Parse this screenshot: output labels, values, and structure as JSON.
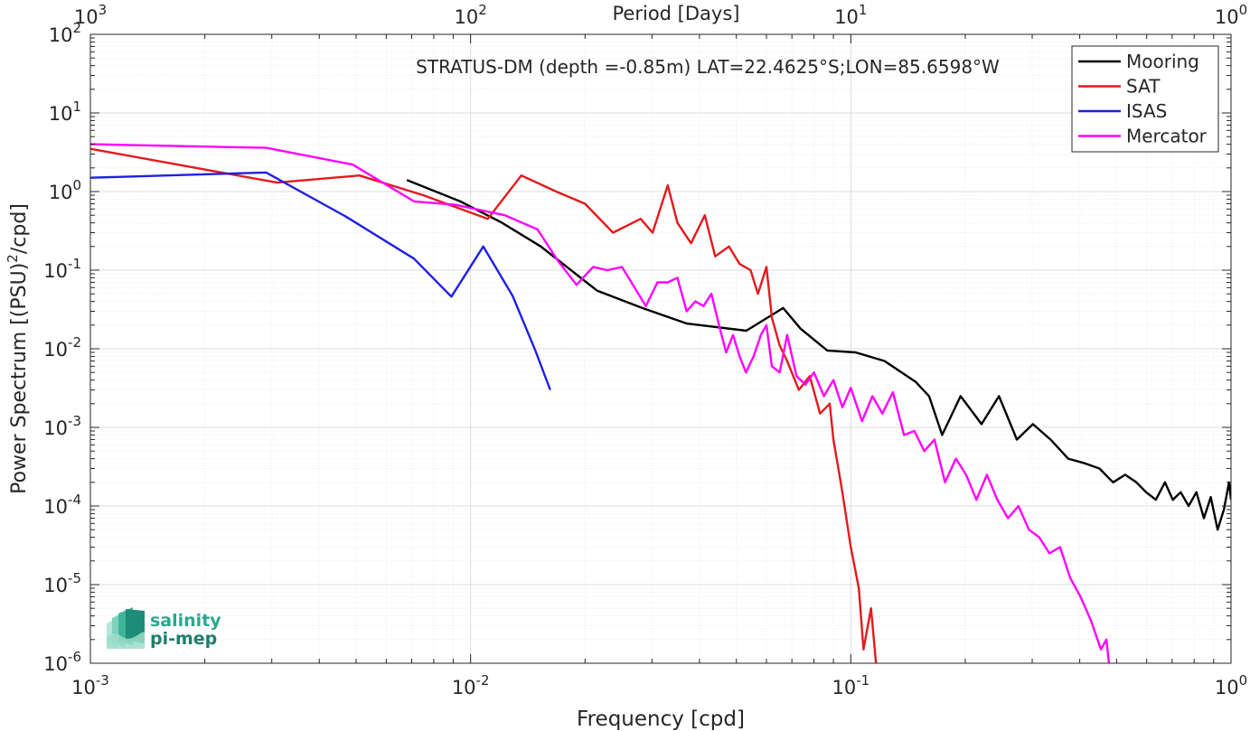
{
  "chart_data": {
    "type": "line",
    "title": "STRATUS-DM (depth =-0.85m) LAT=22.4625°S;LON=85.6598°W",
    "xlabel": "Frequency [cpd]",
    "ylabel": "Power Spectrum [(PSU)",
    "ylabel_sup": "2",
    "ylabel_end": "/cpd]",
    "top_xlabel": "Period [Days]",
    "xscale": "log",
    "yscale": "log",
    "xlim": [
      0.001,
      1
    ],
    "ylim": [
      1e-06,
      100
    ],
    "grid": true,
    "legend_position": "top-right",
    "x_ticks": [
      {
        "value": 0.001,
        "base": "10",
        "exp": "-3"
      },
      {
        "value": 0.01,
        "base": "10",
        "exp": "-2"
      },
      {
        "value": 0.1,
        "base": "10",
        "exp": "-1"
      },
      {
        "value": 1,
        "base": "10",
        "exp": "0"
      }
    ],
    "top_ticks": [
      {
        "value": 0.001,
        "base": "10",
        "exp": "3"
      },
      {
        "value": 0.01,
        "base": "10",
        "exp": "2"
      },
      {
        "value": 0.1,
        "base": "10",
        "exp": "1"
      },
      {
        "value": 1,
        "base": "10",
        "exp": "0"
      }
    ],
    "y_ticks": [
      {
        "value": 1e-06,
        "base": "10",
        "exp": "-6"
      },
      {
        "value": 1e-05,
        "base": "10",
        "exp": "-5"
      },
      {
        "value": 0.0001,
        "base": "10",
        "exp": "-4"
      },
      {
        "value": 0.001,
        "base": "10",
        "exp": "-3"
      },
      {
        "value": 0.01,
        "base": "10",
        "exp": "-2"
      },
      {
        "value": 0.1,
        "base": "10",
        "exp": "-1"
      },
      {
        "value": 1,
        "base": "10",
        "exp": "0"
      },
      {
        "value": 10,
        "base": "10",
        "exp": "1"
      },
      {
        "value": 100,
        "base": "10",
        "exp": "2"
      }
    ],
    "series": [
      {
        "name": "Mooring",
        "color": "#000000",
        "x": [
          0.0068,
          0.0094,
          0.0121,
          0.0153,
          0.0215,
          0.0283,
          0.037,
          0.0531,
          0.0664,
          0.0738,
          0.0867,
          0.1029,
          0.1226,
          0.1481,
          0.1606,
          0.1739,
          0.1944,
          0.2208,
          0.2453,
          0.2734,
          0.3013,
          0.3354,
          0.3729,
          0.4123,
          0.4508,
          0.4894,
          0.5269,
          0.5637,
          0.5978,
          0.6343,
          0.6701,
          0.7029,
          0.7371,
          0.7737,
          0.8109,
          0.8484,
          0.8845,
          0.9223,
          0.9575,
          0.9882,
          1.0
        ],
        "y": [
          1.4,
          0.75,
          0.4,
          0.2,
          0.055,
          0.033,
          0.021,
          0.017,
          0.033,
          0.018,
          0.0095,
          0.009,
          0.007,
          0.0038,
          0.0025,
          0.0008,
          0.0025,
          0.0011,
          0.0025,
          0.0007,
          0.0011,
          0.0007,
          0.0004,
          0.00035,
          0.0003,
          0.0002,
          0.00025,
          0.0002,
          0.00015,
          0.00012,
          0.0002,
          0.00012,
          0.00015,
          0.0001,
          0.00015,
          7e-05,
          0.00013,
          5e-05,
          9e-05,
          0.0002,
          0.00012
        ]
      },
      {
        "name": "SAT",
        "color": "#e4191c",
        "x": [
          0.001,
          0.0031,
          0.0051,
          0.0075,
          0.0111,
          0.0136,
          0.0168,
          0.02,
          0.0237,
          0.028,
          0.0301,
          0.033,
          0.035,
          0.038,
          0.0413,
          0.044,
          0.0478,
          0.051,
          0.0545,
          0.057,
          0.06,
          0.062,
          0.065,
          0.068,
          0.073,
          0.078,
          0.083,
          0.088,
          0.09,
          0.095,
          0.1,
          0.105,
          0.108,
          0.113,
          0.118
        ],
        "y": [
          3.5,
          1.3,
          1.6,
          0.9,
          0.45,
          1.6,
          1.0,
          0.7,
          0.3,
          0.45,
          0.3,
          1.2,
          0.4,
          0.22,
          0.5,
          0.15,
          0.2,
          0.12,
          0.1,
          0.05,
          0.11,
          0.025,
          0.011,
          0.007,
          0.003,
          0.0045,
          0.0015,
          0.002,
          0.0007,
          0.00015,
          3e-05,
          9e-06,
          1.5e-06,
          5e-06,
          5e-07
        ]
      },
      {
        "name": "ISAS",
        "color": "#1f1fe4",
        "x": [
          0.001,
          0.0029,
          0.0047,
          0.0071,
          0.0089,
          0.0108,
          0.0129,
          0.0148,
          0.0162
        ],
        "y": [
          1.5,
          1.75,
          0.48,
          0.14,
          0.046,
          0.2,
          0.047,
          0.0095,
          0.003
        ]
      },
      {
        "name": "Mercator",
        "color": "#ff00ff",
        "x": [
          0.001,
          0.0029,
          0.0049,
          0.0071,
          0.0091,
          0.0123,
          0.015,
          0.017,
          0.019,
          0.021,
          0.0229,
          0.025,
          0.027,
          0.0289,
          0.031,
          0.033,
          0.035,
          0.037,
          0.039,
          0.041,
          0.043,
          0.045,
          0.047,
          0.049,
          0.051,
          0.053,
          0.0555,
          0.058,
          0.06,
          0.062,
          0.065,
          0.068,
          0.072,
          0.076,
          0.08,
          0.085,
          0.09,
          0.095,
          0.1,
          0.107,
          0.114,
          0.121,
          0.129,
          0.138,
          0.147,
          0.156,
          0.166,
          0.177,
          0.189,
          0.201,
          0.214,
          0.228,
          0.243,
          0.259,
          0.276,
          0.294,
          0.313,
          0.333,
          0.355,
          0.378,
          0.402,
          0.428,
          0.455,
          0.47,
          0.48
        ],
        "y": [
          4.0,
          3.6,
          2.2,
          0.75,
          0.68,
          0.5,
          0.33,
          0.13,
          0.065,
          0.11,
          0.1,
          0.11,
          0.06,
          0.035,
          0.07,
          0.07,
          0.08,
          0.03,
          0.04,
          0.035,
          0.05,
          0.02,
          0.009,
          0.015,
          0.008,
          0.005,
          0.008,
          0.015,
          0.02,
          0.006,
          0.005,
          0.015,
          0.0045,
          0.0035,
          0.005,
          0.0025,
          0.004,
          0.0018,
          0.0032,
          0.0012,
          0.0025,
          0.0015,
          0.0028,
          0.0008,
          0.0009,
          0.0005,
          0.0007,
          0.0002,
          0.0004,
          0.00025,
          0.00012,
          0.00025,
          0.00012,
          7e-05,
          0.0001,
          5e-05,
          4e-05,
          2.5e-05,
          3e-05,
          1.2e-05,
          7e-06,
          3.5e-06,
          1.5e-06,
          2e-06,
          8e-07
        ]
      }
    ]
  },
  "logo": {
    "line1": "salinity",
    "line2": "pi-mep"
  }
}
